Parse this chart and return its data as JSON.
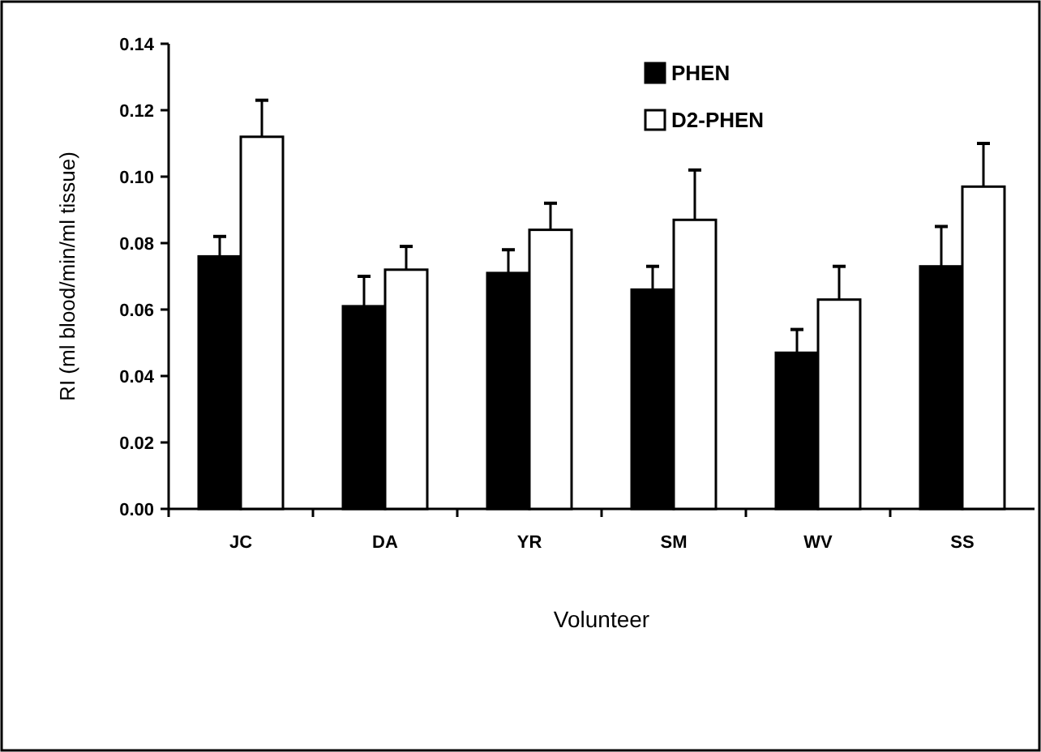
{
  "chart_data": {
    "type": "bar",
    "xlabel": "Volunteer",
    "ylabel": "RI (ml blood/min/ml tissue)",
    "categories": [
      "JC",
      "DA",
      "YR",
      "SM",
      "WV",
      "SS"
    ],
    "series": [
      {
        "name": "PHEN",
        "color": "#000000",
        "values": [
          0.076,
          0.061,
          0.071,
          0.066,
          0.047,
          0.073
        ],
        "errors": [
          [
            0.076,
            0.082
          ],
          [
            0.061,
            0.07
          ],
          [
            0.071,
            0.078
          ],
          [
            0.066,
            0.073
          ],
          [
            0.047,
            0.054
          ],
          [
            0.073,
            0.085
          ]
        ]
      },
      {
        "name": "D2-PHEN",
        "color": "#ffffff",
        "values": [
          0.112,
          0.072,
          0.084,
          0.087,
          0.063,
          0.097
        ],
        "errors": [
          [
            0.112,
            0.123
          ],
          [
            0.072,
            0.079
          ],
          [
            0.084,
            0.092
          ],
          [
            0.087,
            0.102
          ],
          [
            0.063,
            0.073
          ],
          [
            0.097,
            0.11
          ]
        ]
      }
    ],
    "ylim": [
      0,
      0.14
    ],
    "yticks": [
      "0.00",
      0.02,
      0.04,
      0.06,
      0.08,
      "0.10",
      0.12,
      0.14
    ],
    "legend": "top right",
    "grid": false
  }
}
